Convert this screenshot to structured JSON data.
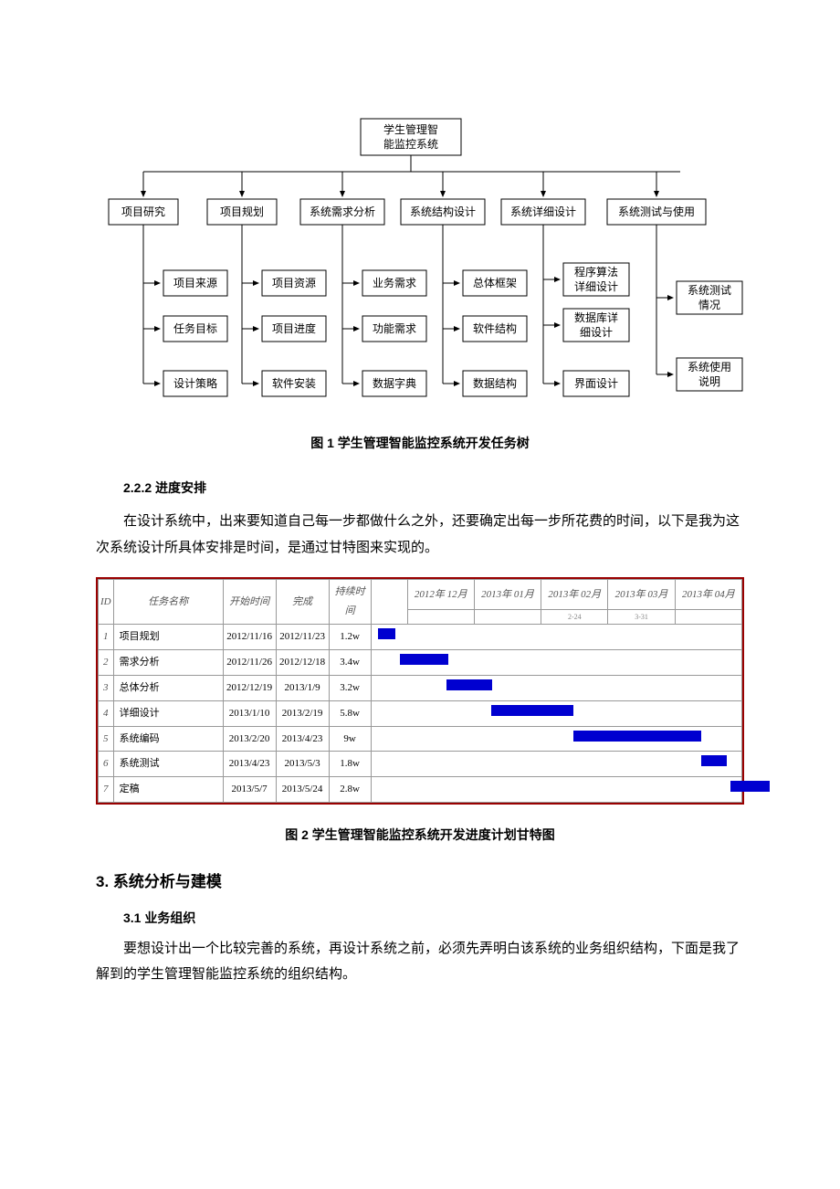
{
  "tree": {
    "root": "学生管理智\n能监控系统",
    "level2": [
      "项目研究",
      "项目规划",
      "系统需求分析",
      "系统结构设计",
      "系统详细设计",
      "系统测试与使用"
    ],
    "children": {
      "项目研究": [
        "项目来源",
        "任务目标",
        "设计策略"
      ],
      "项目规划": [
        "项目资源",
        "项目进度",
        "软件安装"
      ],
      "系统需求分析": [
        "业务需求",
        "功能需求",
        "数据字典"
      ],
      "系统结构设计": [
        "总体框架",
        "软件结构",
        "数据结构"
      ],
      "系统详细设计": [
        "程序算法\n详细设计",
        "数据库详\n细设计",
        "界面设计"
      ],
      "系统测试与使用": [
        "系统测试\n情况",
        "系统使用\n说明"
      ]
    }
  },
  "caption1": "图 1  学生管理智能监控系统开发任务树",
  "sec_222": "2.2.2  进度安排",
  "para1": "在设计系统中，出来要知道自己每一步都做什么之外，还要确定出每一步所花费的时间，以下是我为这次系统设计所具体安排是时间，是通过甘特图来实现的。",
  "gantt": {
    "headers": {
      "id": "ID",
      "name": "任务名称",
      "start": "开始时间",
      "end": "完成",
      "dur": "持续时间"
    },
    "months": [
      "2012年 12月",
      "2013年 01月",
      "2013年 02月",
      "2013年 03月",
      "2013年 04月"
    ],
    "sub_labels": {
      "2": "2-24",
      "3": "3-31"
    },
    "timeline_start_week": 0,
    "timeline_total_weeks": 26,
    "rows": [
      {
        "id": 1,
        "name": "项目规划",
        "start": "2012/11/16",
        "end": "2012/11/23",
        "dur": "1.2w",
        "bar_start": 0.5,
        "bar_len": 1.2
      },
      {
        "id": 2,
        "name": "需求分析",
        "start": "2012/11/26",
        "end": "2012/12/18",
        "dur": "3.4w",
        "bar_start": 2.0,
        "bar_len": 3.4
      },
      {
        "id": 3,
        "name": "总体分析",
        "start": "2012/12/19",
        "end": "2013/1/9",
        "dur": "3.2w",
        "bar_start": 5.3,
        "bar_len": 3.2
      },
      {
        "id": 4,
        "name": "详细设计",
        "start": "2013/1/10",
        "end": "2013/2/19",
        "dur": "5.8w",
        "bar_start": 8.4,
        "bar_len": 5.8
      },
      {
        "id": 5,
        "name": "系统编码",
        "start": "2013/2/20",
        "end": "2013/4/23",
        "dur": "9w",
        "bar_start": 14.2,
        "bar_len": 9.0
      },
      {
        "id": 6,
        "name": "系统测试",
        "start": "2013/4/23",
        "end": "2013/5/3",
        "dur": "1.8w",
        "bar_start": 23.2,
        "bar_len": 1.8
      },
      {
        "id": 7,
        "name": "定稿",
        "start": "2013/5/7",
        "end": "2013/5/24",
        "dur": "2.8w",
        "bar_start": 25.2,
        "bar_len": 2.8
      }
    ],
    "bar_color": "#0000d0",
    "border_color": "#990000"
  },
  "caption2": "图 2 学生管理智能监控系统开发进度计划甘特图",
  "h2_3": "3. 系统分析与建模",
  "sec_31": "3.1 业务组织",
  "para2": "要想设计出一个比较完善的系统，再设计系统之前，必须先弄明白该系统的业务组织结构，下面是我了解到的学生管理智能监控系统的组织结构。"
}
